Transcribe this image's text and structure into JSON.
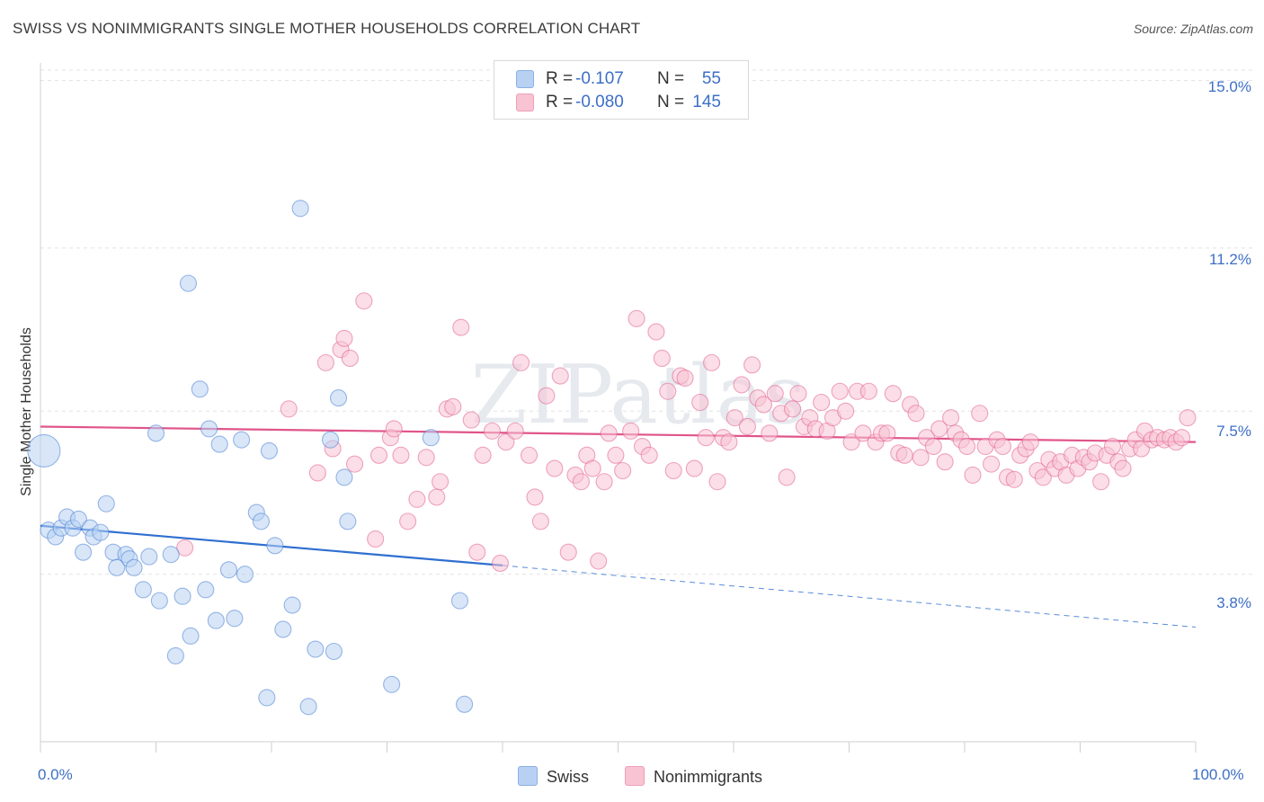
{
  "title": "SWISS VS NONIMMIGRANTS SINGLE MOTHER HOUSEHOLDS CORRELATION CHART",
  "source": "Source: ZipAtlas.com",
  "watermark": "ZIPatlas",
  "legend": {
    "rows": [
      {
        "r_label": "R =",
        "r_value": "-0.107",
        "n_label": "N =",
        "n_value": "55",
        "color": "#b8d1f3",
        "border": "#8ab0e3"
      },
      {
        "r_label": "R =",
        "r_value": "-0.080",
        "n_label": "N =",
        "n_value": "145",
        "color": "#f8c3d3",
        "border": "#eea0b8"
      }
    ]
  },
  "bottom_legend": {
    "swiss": "Swiss",
    "nonimmigrants": "Nonimmigrants"
  },
  "x_axis": {
    "min_label": "0.0%",
    "max_label": "100.0%"
  },
  "y_axis": {
    "title": "Single Mother Households",
    "ticks": [
      "15.0%",
      "11.2%",
      "7.5%",
      "3.8%"
    ]
  },
  "chart_data": {
    "type": "scatter",
    "xlabel": "",
    "ylabel": "Single Mother Households",
    "xlim": [
      0,
      100
    ],
    "ylim": [
      0,
      15.4
    ],
    "y_ticks": [
      3.8,
      7.5,
      11.2,
      15.0
    ],
    "grid": true,
    "legend_position": "top-center",
    "series": [
      {
        "name": "Swiss",
        "color": "#4a7fd4",
        "fill": "#b8d1f3",
        "trend": {
          "x0": 0,
          "y0": 4.9,
          "x1": 40,
          "y1": 4.0,
          "dashed_to_x": 100,
          "dashed_to_y": 2.6
        },
        "points": [
          [
            0.3,
            6.6,
            "big"
          ],
          [
            0.7,
            4.8
          ],
          [
            1.3,
            4.65
          ],
          [
            1.8,
            4.85
          ],
          [
            2.3,
            5.1
          ],
          [
            2.8,
            4.85
          ],
          [
            3.3,
            5.05
          ],
          [
            3.7,
            4.3
          ],
          [
            4.3,
            4.85
          ],
          [
            4.6,
            4.65
          ],
          [
            5.2,
            4.75
          ],
          [
            5.7,
            5.4
          ],
          [
            6.3,
            4.3
          ],
          [
            6.6,
            3.95
          ],
          [
            7.4,
            4.25
          ],
          [
            7.7,
            4.15
          ],
          [
            8.1,
            3.95
          ],
          [
            8.9,
            3.45
          ],
          [
            9.4,
            4.2
          ],
          [
            10.0,
            7.0
          ],
          [
            10.3,
            3.2
          ],
          [
            11.3,
            4.25
          ],
          [
            11.7,
            1.95
          ],
          [
            12.3,
            3.3
          ],
          [
            12.8,
            10.4
          ],
          [
            13.0,
            2.4
          ],
          [
            13.8,
            8.0
          ],
          [
            14.3,
            3.45
          ],
          [
            14.6,
            7.1
          ],
          [
            15.2,
            2.75
          ],
          [
            15.5,
            6.75
          ],
          [
            16.3,
            3.9
          ],
          [
            16.8,
            2.8
          ],
          [
            17.4,
            6.85
          ],
          [
            17.7,
            3.8
          ],
          [
            18.7,
            5.2
          ],
          [
            19.1,
            5.0
          ],
          [
            19.6,
            1.0
          ],
          [
            19.8,
            6.6
          ],
          [
            20.3,
            4.45
          ],
          [
            21.0,
            2.55
          ],
          [
            21.8,
            3.1
          ],
          [
            22.5,
            12.1
          ],
          [
            23.2,
            0.8
          ],
          [
            23.8,
            2.1
          ],
          [
            25.1,
            6.85
          ],
          [
            25.4,
            2.05
          ],
          [
            25.8,
            7.8
          ],
          [
            26.3,
            6.0
          ],
          [
            26.6,
            5.0
          ],
          [
            30.4,
            1.3
          ],
          [
            33.8,
            6.9
          ],
          [
            36.3,
            3.2
          ],
          [
            36.7,
            0.85
          ]
        ]
      },
      {
        "name": "Nonimmigrants",
        "color": "#e26090",
        "fill": "#f8c3d3",
        "trend": {
          "x0": 0,
          "y0": 7.15,
          "x1": 100,
          "y1": 6.8
        },
        "points": [
          [
            12.5,
            4.4
          ],
          [
            21.5,
            7.55
          ],
          [
            24.0,
            6.1
          ],
          [
            24.7,
            8.6
          ],
          [
            25.3,
            6.65
          ],
          [
            26.0,
            8.9
          ],
          [
            26.3,
            9.15
          ],
          [
            26.8,
            8.7
          ],
          [
            27.2,
            6.3
          ],
          [
            28.0,
            10.0
          ],
          [
            29.0,
            4.6
          ],
          [
            29.3,
            6.5
          ],
          [
            30.3,
            6.9
          ],
          [
            30.6,
            7.1
          ],
          [
            31.2,
            6.5
          ],
          [
            31.8,
            5.0
          ],
          [
            32.6,
            5.5
          ],
          [
            33.4,
            6.45
          ],
          [
            34.3,
            5.55
          ],
          [
            34.6,
            5.9
          ],
          [
            35.2,
            7.55
          ],
          [
            35.7,
            7.6
          ],
          [
            36.4,
            9.4
          ],
          [
            37.3,
            7.3
          ],
          [
            37.8,
            4.3
          ],
          [
            38.3,
            6.5
          ],
          [
            39.1,
            7.05
          ],
          [
            39.8,
            4.05
          ],
          [
            40.3,
            6.8
          ],
          [
            41.1,
            7.05
          ],
          [
            41.6,
            8.6
          ],
          [
            42.3,
            6.5
          ],
          [
            42.8,
            5.55
          ],
          [
            43.3,
            5.0
          ],
          [
            43.8,
            7.85
          ],
          [
            44.5,
            6.2
          ],
          [
            45.0,
            8.3
          ],
          [
            45.7,
            4.3
          ],
          [
            46.3,
            6.05
          ],
          [
            46.8,
            5.9
          ],
          [
            47.3,
            6.5
          ],
          [
            47.8,
            6.2
          ],
          [
            48.3,
            4.1
          ],
          [
            48.8,
            5.9
          ],
          [
            49.2,
            7.0
          ],
          [
            49.8,
            6.5
          ],
          [
            50.4,
            6.15
          ],
          [
            51.1,
            7.05
          ],
          [
            51.6,
            9.6
          ],
          [
            52.1,
            6.7
          ],
          [
            52.7,
            6.5
          ],
          [
            53.3,
            9.3
          ],
          [
            53.8,
            8.7
          ],
          [
            54.3,
            7.95
          ],
          [
            54.8,
            6.15
          ],
          [
            55.4,
            8.3
          ],
          [
            55.8,
            8.25
          ],
          [
            56.6,
            6.2
          ],
          [
            57.1,
            7.7
          ],
          [
            57.6,
            6.9
          ],
          [
            58.1,
            8.6
          ],
          [
            58.6,
            5.9
          ],
          [
            59.1,
            6.9
          ],
          [
            59.6,
            6.8
          ],
          [
            60.1,
            7.35
          ],
          [
            60.7,
            8.1
          ],
          [
            61.2,
            7.15
          ],
          [
            61.6,
            8.55
          ],
          [
            62.1,
            7.8
          ],
          [
            62.6,
            7.65
          ],
          [
            63.1,
            7.0
          ],
          [
            63.6,
            7.9
          ],
          [
            64.1,
            7.45
          ],
          [
            64.6,
            6.0
          ],
          [
            65.1,
            7.55
          ],
          [
            65.6,
            7.9
          ],
          [
            66.1,
            7.15
          ],
          [
            66.6,
            7.35
          ],
          [
            67.1,
            7.1
          ],
          [
            67.6,
            7.7
          ],
          [
            68.1,
            7.05
          ],
          [
            68.6,
            7.35
          ],
          [
            69.2,
            7.95
          ],
          [
            69.7,
            7.5
          ],
          [
            70.2,
            6.8
          ],
          [
            70.7,
            7.95
          ],
          [
            71.2,
            7.0
          ],
          [
            71.7,
            7.95
          ],
          [
            72.3,
            6.8
          ],
          [
            72.8,
            7.0
          ],
          [
            73.3,
            7.0
          ],
          [
            73.8,
            7.9
          ],
          [
            74.3,
            6.55
          ],
          [
            74.8,
            6.5
          ],
          [
            75.3,
            7.65
          ],
          [
            75.8,
            7.45
          ],
          [
            76.2,
            6.45
          ],
          [
            76.7,
            6.9
          ],
          [
            77.3,
            6.7
          ],
          [
            77.8,
            7.1
          ],
          [
            78.3,
            6.35
          ],
          [
            78.8,
            7.35
          ],
          [
            79.2,
            7.0
          ],
          [
            79.7,
            6.85
          ],
          [
            80.2,
            6.7
          ],
          [
            80.7,
            6.05
          ],
          [
            81.3,
            7.45
          ],
          [
            81.8,
            6.7
          ],
          [
            82.3,
            6.3
          ],
          [
            82.8,
            6.85
          ],
          [
            83.3,
            6.7
          ],
          [
            83.7,
            6.0
          ],
          [
            84.3,
            5.95
          ],
          [
            84.8,
            6.5
          ],
          [
            85.3,
            6.65
          ],
          [
            85.7,
            6.8
          ],
          [
            86.3,
            6.15
          ],
          [
            86.8,
            6.0
          ],
          [
            87.3,
            6.4
          ],
          [
            87.8,
            6.2
          ],
          [
            88.3,
            6.35
          ],
          [
            88.8,
            6.05
          ],
          [
            89.3,
            6.5
          ],
          [
            89.8,
            6.2
          ],
          [
            90.3,
            6.45
          ],
          [
            90.8,
            6.35
          ],
          [
            91.3,
            6.55
          ],
          [
            91.8,
            5.9
          ],
          [
            92.3,
            6.5
          ],
          [
            92.8,
            6.7
          ],
          [
            93.3,
            6.35
          ],
          [
            93.7,
            6.2
          ],
          [
            94.3,
            6.65
          ],
          [
            94.8,
            6.85
          ],
          [
            95.3,
            6.65
          ],
          [
            95.6,
            7.05
          ],
          [
            96.2,
            6.85
          ],
          [
            96.7,
            6.9
          ],
          [
            97.3,
            6.85
          ],
          [
            97.8,
            6.9
          ],
          [
            98.3,
            6.8
          ],
          [
            98.8,
            6.9
          ],
          [
            99.3,
            7.35
          ]
        ]
      }
    ]
  }
}
